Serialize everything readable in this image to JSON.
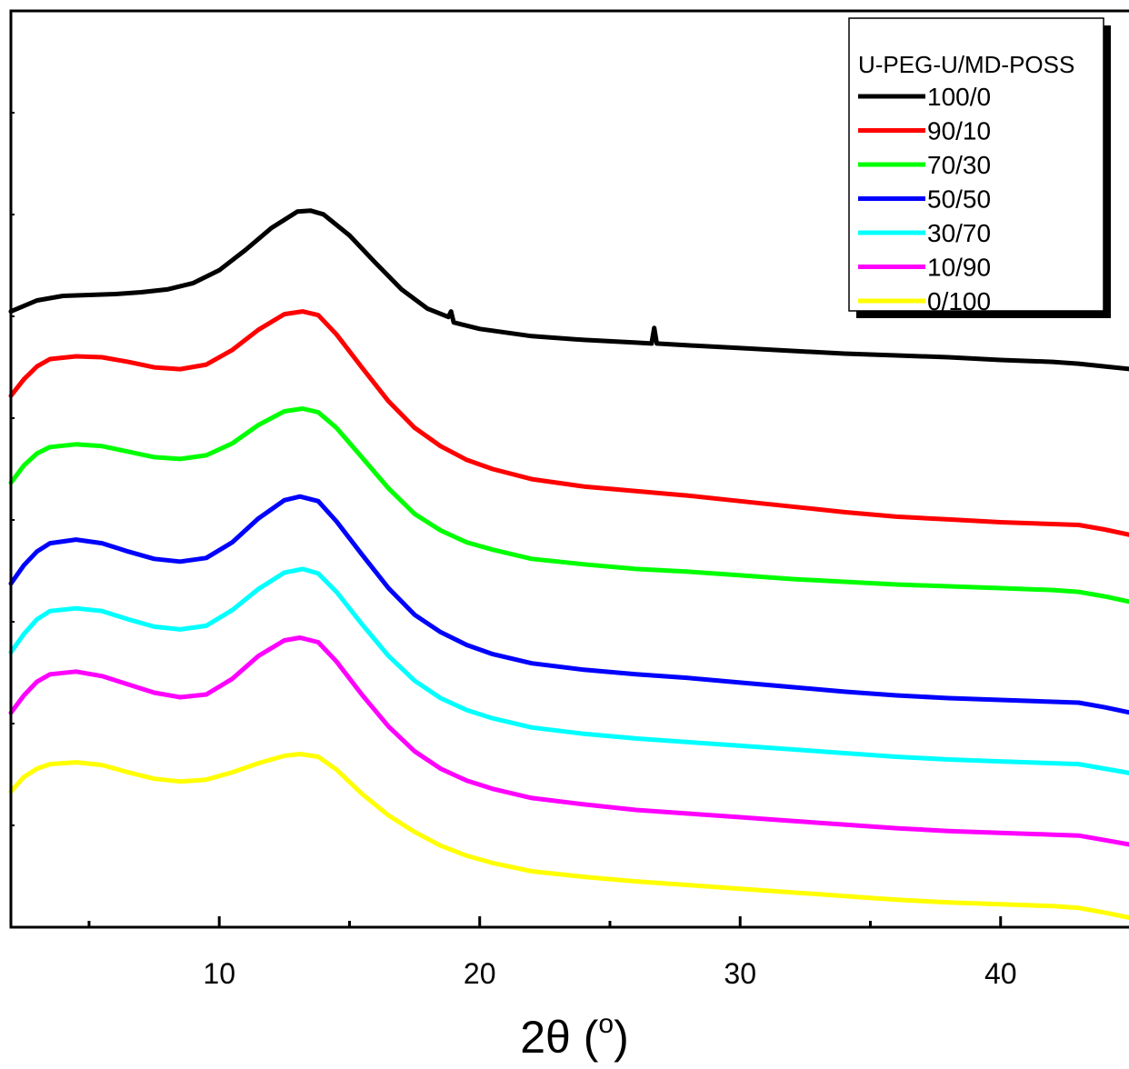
{
  "chart_data": {
    "type": "line",
    "title": "",
    "xlabel": "2θ (",
    "xlabel_sup": "o",
    "xlabel_close": ")",
    "ylabel": "",
    "xlim": [
      2,
      45
    ],
    "ylim": [
      0,
      100
    ],
    "x_ticks": [
      10,
      20,
      30,
      40
    ],
    "x_minor_ticks": [
      5,
      15,
      25,
      35,
      45
    ],
    "grid": false,
    "y_tick_labels_shown": false,
    "legend": {
      "title": "U-PEG-U/MD-POSS",
      "position": "top-right"
    },
    "series": [
      {
        "name": "100/0",
        "color": "#000000",
        "points": [
          [
            2,
            67.2
          ],
          [
            3,
            68.4
          ],
          [
            4,
            68.9
          ],
          [
            5,
            69.0
          ],
          [
            6,
            69.1
          ],
          [
            7,
            69.3
          ],
          [
            8,
            69.6
          ],
          [
            9,
            70.3
          ],
          [
            10,
            71.7
          ],
          [
            11,
            73.9
          ],
          [
            12,
            76.3
          ],
          [
            13,
            78.1
          ],
          [
            13.5,
            78.2
          ],
          [
            14,
            77.8
          ],
          [
            15,
            75.5
          ],
          [
            16,
            72.5
          ],
          [
            17,
            69.6
          ],
          [
            18,
            67.5
          ],
          [
            18.8,
            66.6
          ],
          [
            18.9,
            67.2
          ],
          [
            19,
            66.0
          ],
          [
            20,
            65.3
          ],
          [
            22,
            64.5
          ],
          [
            24,
            64.1
          ],
          [
            26,
            63.8
          ],
          [
            26.6,
            63.7
          ],
          [
            26.7,
            65.4
          ],
          [
            26.8,
            63.7
          ],
          [
            28,
            63.5
          ],
          [
            30,
            63.2
          ],
          [
            32,
            62.9
          ],
          [
            34,
            62.6
          ],
          [
            36,
            62.4
          ],
          [
            38,
            62.2
          ],
          [
            40,
            61.9
          ],
          [
            42,
            61.7
          ],
          [
            43,
            61.5
          ],
          [
            44,
            61.2
          ],
          [
            45,
            60.9
          ]
        ]
      },
      {
        "name": "90/10",
        "color": "#ff0000",
        "points": [
          [
            2,
            58.0
          ],
          [
            2.5,
            59.8
          ],
          [
            3,
            61.2
          ],
          [
            3.5,
            62.0
          ],
          [
            4.5,
            62.3
          ],
          [
            5.5,
            62.2
          ],
          [
            6.5,
            61.7
          ],
          [
            7.5,
            61.1
          ],
          [
            8.5,
            60.9
          ],
          [
            9.5,
            61.4
          ],
          [
            10.5,
            63.0
          ],
          [
            11.5,
            65.2
          ],
          [
            12.5,
            66.9
          ],
          [
            13.2,
            67.2
          ],
          [
            13.8,
            66.8
          ],
          [
            14.5,
            64.7
          ],
          [
            15.5,
            61.0
          ],
          [
            16.5,
            57.4
          ],
          [
            17.5,
            54.5
          ],
          [
            18.5,
            52.5
          ],
          [
            19.5,
            51.0
          ],
          [
            20.5,
            50.0
          ],
          [
            22,
            48.9
          ],
          [
            24,
            48.1
          ],
          [
            26,
            47.6
          ],
          [
            28,
            47.1
          ],
          [
            30,
            46.5
          ],
          [
            32,
            45.9
          ],
          [
            34,
            45.3
          ],
          [
            36,
            44.8
          ],
          [
            38,
            44.5
          ],
          [
            40,
            44.2
          ],
          [
            42,
            44.0
          ],
          [
            43,
            43.9
          ],
          [
            44,
            43.4
          ],
          [
            45,
            42.8
          ]
        ]
      },
      {
        "name": "70/30",
        "color": "#00ff00",
        "points": [
          [
            2,
            48.5
          ],
          [
            2.5,
            50.4
          ],
          [
            3,
            51.7
          ],
          [
            3.5,
            52.4
          ],
          [
            4.5,
            52.7
          ],
          [
            5.5,
            52.5
          ],
          [
            6.5,
            51.9
          ],
          [
            7.5,
            51.3
          ],
          [
            8.5,
            51.1
          ],
          [
            9.5,
            51.5
          ],
          [
            10.5,
            52.8
          ],
          [
            11.5,
            54.8
          ],
          [
            12.5,
            56.3
          ],
          [
            13.2,
            56.6
          ],
          [
            13.8,
            56.2
          ],
          [
            14.5,
            54.5
          ],
          [
            15.5,
            51.2
          ],
          [
            16.5,
            47.9
          ],
          [
            17.5,
            45.1
          ],
          [
            18.5,
            43.3
          ],
          [
            19.5,
            42.0
          ],
          [
            20.5,
            41.2
          ],
          [
            22,
            40.2
          ],
          [
            24,
            39.6
          ],
          [
            26,
            39.1
          ],
          [
            28,
            38.8
          ],
          [
            30,
            38.4
          ],
          [
            32,
            38.0
          ],
          [
            34,
            37.7
          ],
          [
            36,
            37.4
          ],
          [
            38,
            37.2
          ],
          [
            40,
            37.0
          ],
          [
            42,
            36.8
          ],
          [
            43,
            36.6
          ],
          [
            44,
            36.1
          ],
          [
            45,
            35.5
          ]
        ]
      },
      {
        "name": "50/50",
        "color": "#0000ff",
        "points": [
          [
            2,
            37.5
          ],
          [
            2.5,
            39.5
          ],
          [
            3,
            41.0
          ],
          [
            3.5,
            41.9
          ],
          [
            4.5,
            42.3
          ],
          [
            5.5,
            41.9
          ],
          [
            6.5,
            41.0
          ],
          [
            7.5,
            40.2
          ],
          [
            8.5,
            39.9
          ],
          [
            9.5,
            40.3
          ],
          [
            10.5,
            42.0
          ],
          [
            11.5,
            44.6
          ],
          [
            12.5,
            46.6
          ],
          [
            13.1,
            47.0
          ],
          [
            13.8,
            46.5
          ],
          [
            14.5,
            44.3
          ],
          [
            15.5,
            40.6
          ],
          [
            16.5,
            37.0
          ],
          [
            17.5,
            34.1
          ],
          [
            18.5,
            32.2
          ],
          [
            19.5,
            30.8
          ],
          [
            20.5,
            29.8
          ],
          [
            22,
            28.8
          ],
          [
            24,
            28.1
          ],
          [
            26,
            27.6
          ],
          [
            28,
            27.2
          ],
          [
            30,
            26.7
          ],
          [
            32,
            26.2
          ],
          [
            34,
            25.7
          ],
          [
            36,
            25.3
          ],
          [
            38,
            25.0
          ],
          [
            40,
            24.8
          ],
          [
            42,
            24.6
          ],
          [
            43,
            24.5
          ],
          [
            44,
            24.0
          ],
          [
            45,
            23.4
          ]
        ]
      },
      {
        "name": "30/70",
        "color": "#00ffff",
        "points": [
          [
            2,
            30.0
          ],
          [
            2.5,
            32.0
          ],
          [
            3,
            33.6
          ],
          [
            3.5,
            34.5
          ],
          [
            4.5,
            34.8
          ],
          [
            5.5,
            34.5
          ],
          [
            6.5,
            33.6
          ],
          [
            7.5,
            32.8
          ],
          [
            8.5,
            32.5
          ],
          [
            9.5,
            32.9
          ],
          [
            10.5,
            34.6
          ],
          [
            11.5,
            36.9
          ],
          [
            12.5,
            38.7
          ],
          [
            13.2,
            39.1
          ],
          [
            13.8,
            38.6
          ],
          [
            14.5,
            36.6
          ],
          [
            15.5,
            33.0
          ],
          [
            16.5,
            29.6
          ],
          [
            17.5,
            26.9
          ],
          [
            18.5,
            25.0
          ],
          [
            19.5,
            23.7
          ],
          [
            20.5,
            22.8
          ],
          [
            22,
            21.8
          ],
          [
            24,
            21.1
          ],
          [
            26,
            20.6
          ],
          [
            28,
            20.2
          ],
          [
            30,
            19.8
          ],
          [
            32,
            19.4
          ],
          [
            34,
            19.0
          ],
          [
            36,
            18.6
          ],
          [
            38,
            18.3
          ],
          [
            40,
            18.1
          ],
          [
            42,
            17.9
          ],
          [
            43,
            17.8
          ],
          [
            44,
            17.3
          ],
          [
            45,
            16.8
          ]
        ]
      },
      {
        "name": "10/90",
        "color": "#ff00ff",
        "points": [
          [
            2,
            23.4
          ],
          [
            2.5,
            25.3
          ],
          [
            3,
            26.8
          ],
          [
            3.5,
            27.6
          ],
          [
            4.5,
            27.9
          ],
          [
            5.5,
            27.4
          ],
          [
            6.5,
            26.5
          ],
          [
            7.5,
            25.6
          ],
          [
            8.5,
            25.1
          ],
          [
            9.5,
            25.4
          ],
          [
            10.5,
            27.1
          ],
          [
            11.5,
            29.6
          ],
          [
            12.5,
            31.3
          ],
          [
            13.1,
            31.6
          ],
          [
            13.8,
            31.1
          ],
          [
            14.5,
            29.0
          ],
          [
            15.5,
            25.3
          ],
          [
            16.5,
            21.9
          ],
          [
            17.5,
            19.2
          ],
          [
            18.5,
            17.3
          ],
          [
            19.5,
            16.0
          ],
          [
            20.5,
            15.1
          ],
          [
            22,
            14.1
          ],
          [
            24,
            13.4
          ],
          [
            26,
            12.8
          ],
          [
            28,
            12.4
          ],
          [
            30,
            12.0
          ],
          [
            32,
            11.6
          ],
          [
            34,
            11.2
          ],
          [
            36,
            10.8
          ],
          [
            38,
            10.5
          ],
          [
            40,
            10.3
          ],
          [
            42,
            10.1
          ],
          [
            43,
            10.0
          ],
          [
            44,
            9.5
          ],
          [
            45,
            9.0
          ]
        ]
      },
      {
        "name": "0/100",
        "color": "#ffff00",
        "points": [
          [
            2,
            14.8
          ],
          [
            2.5,
            16.4
          ],
          [
            3,
            17.3
          ],
          [
            3.5,
            17.8
          ],
          [
            4.5,
            18.0
          ],
          [
            5.5,
            17.7
          ],
          [
            6.5,
            16.9
          ],
          [
            7.5,
            16.2
          ],
          [
            8.5,
            15.9
          ],
          [
            9.5,
            16.1
          ],
          [
            10.5,
            16.9
          ],
          [
            11.5,
            17.9
          ],
          [
            12.5,
            18.7
          ],
          [
            13.1,
            18.9
          ],
          [
            13.8,
            18.6
          ],
          [
            14.5,
            17.2
          ],
          [
            15.5,
            14.5
          ],
          [
            16.5,
            12.2
          ],
          [
            17.5,
            10.4
          ],
          [
            18.5,
            8.9
          ],
          [
            19.5,
            7.8
          ],
          [
            20.5,
            7.0
          ],
          [
            22,
            6.1
          ],
          [
            24,
            5.5
          ],
          [
            26,
            5.0
          ],
          [
            28,
            4.6
          ],
          [
            30,
            4.2
          ],
          [
            32,
            3.8
          ],
          [
            34,
            3.4
          ],
          [
            36,
            3.0
          ],
          [
            38,
            2.7
          ],
          [
            40,
            2.5
          ],
          [
            42,
            2.3
          ],
          [
            43,
            2.1
          ],
          [
            44,
            1.6
          ],
          [
            45,
            1.0
          ]
        ]
      }
    ]
  }
}
